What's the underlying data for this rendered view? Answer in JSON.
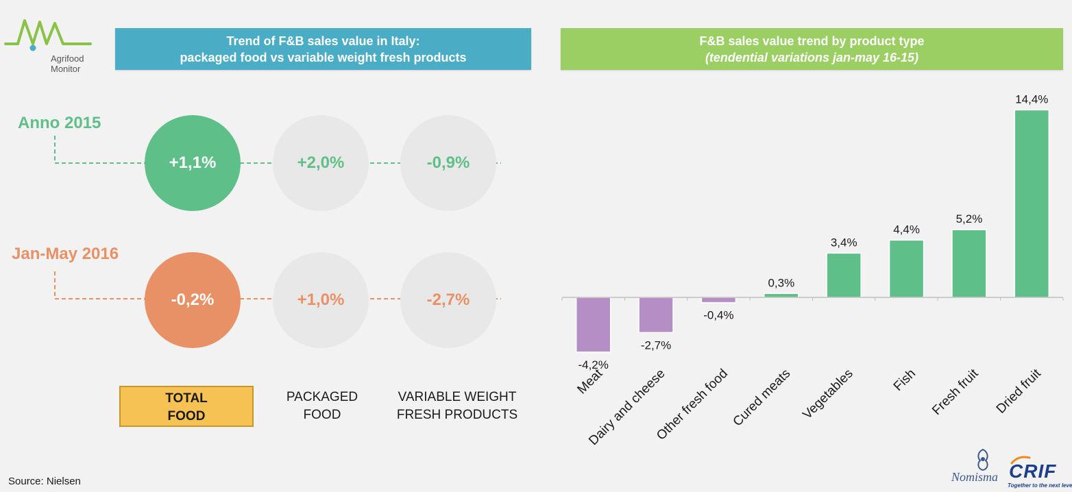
{
  "logo": {
    "brand_text": "Agrifood Monitor"
  },
  "left_panel": {
    "title_line1": "Trend of F&B sales value  in Italy:",
    "title_line2": "packaged food vs variable weight fresh products",
    "rows": [
      {
        "label": "Anno 2015",
        "color": "#5fbf88",
        "values": [
          "+1,1%",
          "+2,0%",
          "-0,9%"
        ]
      },
      {
        "label": "Jan-May 2016",
        "color": "#e99166",
        "values": [
          "-0,2%",
          "+1,0%",
          "-2,7%"
        ]
      }
    ],
    "legend": {
      "total_line1": "TOTAL",
      "total_line2": "FOOD",
      "packaged_line1": "PACKAGED",
      "packaged_line2": "FOOD",
      "variable_line1": "VARIABLE WEIGHT",
      "variable_line2": "FRESH PRODUCTS"
    },
    "colors": {
      "banner": "#4bacc6",
      "total_box": "#f5c253",
      "total_box_border": "#c9962a",
      "neutral_circle": "#e8e8e8"
    }
  },
  "right_panel": {
    "title_line1": "F&B sales value trend by product type",
    "title_line2": "(tendential  variations jan-may  16-15)",
    "colors": {
      "banner": "#9bcf63",
      "positive": "#5fbf88",
      "negative": "#b48ec4"
    }
  },
  "chart_data": {
    "type": "bar",
    "title": "F&B sales value trend by product type",
    "subtitle": "(tendential  variations jan-may  16-15)",
    "categories": [
      "Meat",
      "Dairy and cheese",
      "Other fresh food",
      "Cured meats",
      "Vegetables",
      "Fish",
      "Fresh fruit",
      "Dried fruit"
    ],
    "values": [
      -4.2,
      -2.7,
      -0.4,
      0.3,
      3.4,
      4.4,
      5.2,
      14.4
    ],
    "value_labels": [
      "-4,2%",
      "-2,7%",
      "-0,4%",
      "0,3%",
      "3,4%",
      "4,4%",
      "5,2%",
      "14,4%"
    ],
    "unit": "%",
    "ylim": [
      -4.2,
      14.4
    ],
    "grid": false,
    "legend": "none"
  },
  "source": "Source: Nielsen",
  "partner_logos": {
    "nomisma": "Nomisma",
    "crif": "CRIF",
    "crif_tagline": "Together to the next level"
  }
}
